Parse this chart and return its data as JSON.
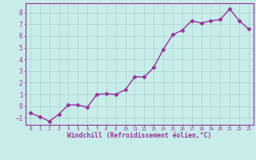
{
  "x": [
    0,
    1,
    2,
    3,
    4,
    5,
    6,
    7,
    8,
    9,
    10,
    11,
    12,
    13,
    14,
    15,
    16,
    17,
    18,
    19,
    20,
    21,
    22,
    23
  ],
  "y": [
    -0.6,
    -0.9,
    -1.3,
    -0.7,
    0.1,
    0.1,
    -0.1,
    1.0,
    1.05,
    1.0,
    1.4,
    2.5,
    2.5,
    3.3,
    4.85,
    6.1,
    6.5,
    7.3,
    7.1,
    7.3,
    7.4,
    8.3,
    7.3,
    6.6
  ],
  "line_color": "#993399",
  "marker": "D",
  "marker_size": 2.5,
  "marker_linewidth": 0.5,
  "line_width": 1.0,
  "bg_color": "#c8ecea",
  "grid_color": "#a8d4d0",
  "xlabel": "Windchill (Refroidissement éolien,°C)",
  "ytick_vals": [
    -1,
    0,
    1,
    2,
    3,
    4,
    5,
    6,
    7,
    8
  ],
  "xtick_labels": [
    "0",
    "1",
    "2",
    "3",
    "4",
    "5",
    "6",
    "7",
    "8",
    "9",
    "10",
    "11",
    "12",
    "13",
    "14",
    "15",
    "16",
    "17",
    "18",
    "19",
    "20",
    "21",
    "22",
    "23"
  ],
  "ylim": [
    -1.6,
    8.8
  ],
  "xlim": [
    -0.5,
    23.5
  ],
  "label_color": "#993399",
  "axis_color": "#993399",
  "ytick_fontsize": 5.5,
  "xtick_fontsize": 4.2,
  "xlabel_fontsize": 5.8
}
